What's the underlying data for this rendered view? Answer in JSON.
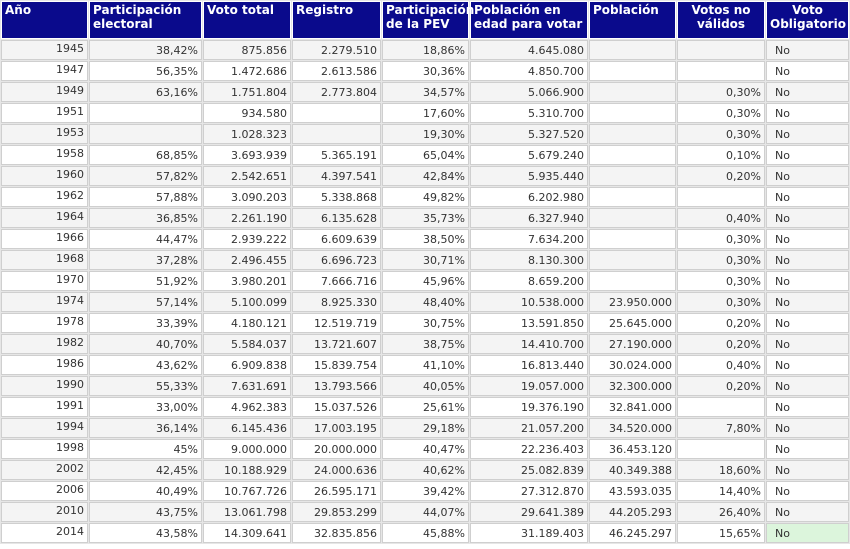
{
  "headers": [
    "Año",
    "Participación electoral",
    "Voto total",
    "Registro",
    "Participación de la PEV",
    "Población en edad para votar",
    "Población",
    "Votos no válidos",
    "Voto Obligatorio"
  ],
  "rows": [
    [
      "1945",
      "38,42%",
      "875.856",
      "2.279.510",
      "18,86%",
      "4.645.080",
      "",
      "",
      "No"
    ],
    [
      "1947",
      "56,35%",
      "1.472.686",
      "2.613.586",
      "30,36%",
      "4.850.700",
      "",
      "",
      "No"
    ],
    [
      "1949",
      "63,16%",
      "1.751.804",
      "2.773.804",
      "34,57%",
      "5.066.900",
      "",
      "0,30%",
      "No"
    ],
    [
      "1951",
      "",
      "934.580",
      "",
      "17,60%",
      "5.310.700",
      "",
      "0,30%",
      "No"
    ],
    [
      "1953",
      "",
      "1.028.323",
      "",
      "19,30%",
      "5.327.520",
      "",
      "0,30%",
      "No"
    ],
    [
      "1958",
      "68,85%",
      "3.693.939",
      "5.365.191",
      "65,04%",
      "5.679.240",
      "",
      "0,10%",
      "No"
    ],
    [
      "1960",
      "57,82%",
      "2.542.651",
      "4.397.541",
      "42,84%",
      "5.935.440",
      "",
      "0,20%",
      "No"
    ],
    [
      "1962",
      "57,88%",
      "3.090.203",
      "5.338.868",
      "49,82%",
      "6.202.980",
      "",
      "",
      "No"
    ],
    [
      "1964",
      "36,85%",
      "2.261.190",
      "6.135.628",
      "35,73%",
      "6.327.940",
      "",
      "0,40%",
      "No"
    ],
    [
      "1966",
      "44,47%",
      "2.939.222",
      "6.609.639",
      "38,50%",
      "7.634.200",
      "",
      "0,30%",
      "No"
    ],
    [
      "1968",
      "37,28%",
      "2.496.455",
      "6.696.723",
      "30,71%",
      "8.130.300",
      "",
      "0,30%",
      "No"
    ],
    [
      "1970",
      "51,92%",
      "3.980.201",
      "7.666.716",
      "45,96%",
      "8.659.200",
      "",
      "0,30%",
      "No"
    ],
    [
      "1974",
      "57,14%",
      "5.100.099",
      "8.925.330",
      "48,40%",
      "10.538.000",
      "23.950.000",
      "0,30%",
      "No"
    ],
    [
      "1978",
      "33,39%",
      "4.180.121",
      "12.519.719",
      "30,75%",
      "13.591.850",
      "25.645.000",
      "0,20%",
      "No"
    ],
    [
      "1982",
      "40,70%",
      "5.584.037",
      "13.721.607",
      "38,75%",
      "14.410.700",
      "27.190.000",
      "0,20%",
      "No"
    ],
    [
      "1986",
      "43,62%",
      "6.909.838",
      "15.839.754",
      "41,10%",
      "16.813.440",
      "30.024.000",
      "0,40%",
      "No"
    ],
    [
      "1990",
      "55,33%",
      "7.631.691",
      "13.793.566",
      "40,05%",
      "19.057.000",
      "32.300.000",
      "0,20%",
      "No"
    ],
    [
      "1991",
      "33,00%",
      "4.962.383",
      "15.037.526",
      "25,61%",
      "19.376.190",
      "32.841.000",
      "",
      "No"
    ],
    [
      "1994",
      "36,14%",
      "6.145.436",
      "17.003.195",
      "29,18%",
      "21.057.200",
      "34.520.000",
      "7,80%",
      "No"
    ],
    [
      "1998",
      "45%",
      "9.000.000",
      "20.000.000",
      "40,47%",
      "22.236.403",
      "36.453.120",
      "",
      "No"
    ],
    [
      "2002",
      "42,45%",
      "10.188.929",
      "24.000.636",
      "40,62%",
      "25.082.839",
      "40.349.388",
      "18,60%",
      "No"
    ],
    [
      "2006",
      "40,49%",
      "10.767.726",
      "26.595.171",
      "39,42%",
      "27.312.870",
      "43.593.035",
      "14,40%",
      "No"
    ],
    [
      "2010",
      "43,75%",
      "13.061.798",
      "29.853.299",
      "44,07%",
      "29.641.389",
      "44.205.293",
      "26,40%",
      "No"
    ],
    [
      "2014",
      "43,58%",
      "14.309.641",
      "32.835.856",
      "45,88%",
      "31.189.403",
      "46.245.297",
      "15,65%",
      "No"
    ]
  ],
  "colors": {
    "header_bg": "#0a0a8c",
    "header_text": "#ffffff",
    "highlight_cell": "#dcf5dc"
  }
}
